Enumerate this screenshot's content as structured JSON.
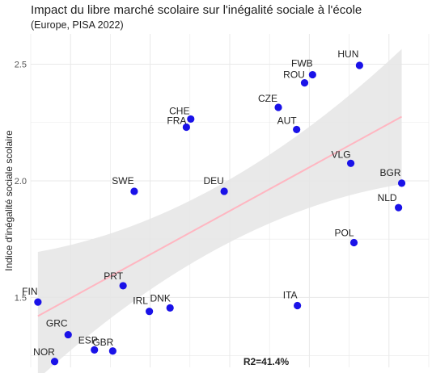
{
  "chart_data": {
    "type": "scatter",
    "title": "Impact du libre marché scolaire sur l'inégalité sociale à l'école",
    "subtitle": "(Europe, PISA 2022)",
    "xlabel": "",
    "ylabel": "Indice d'inégalité sociale scolaire",
    "ylim": [
      1.2,
      2.63
    ],
    "xlim": [
      0,
      1
    ],
    "yticks": [
      1.5,
      2.0,
      2.5
    ],
    "ytick_labels": [
      "1.5",
      "2.0",
      "2.5"
    ],
    "grid": true,
    "points": [
      {
        "label": "HUN",
        "x": 0.826,
        "y": 2.495
      },
      {
        "label": "FWB",
        "x": 0.708,
        "y": 2.455
      },
      {
        "label": "ROU",
        "x": 0.688,
        "y": 2.42
      },
      {
        "label": "CZE",
        "x": 0.622,
        "y": 2.315
      },
      {
        "label": "AUT",
        "x": 0.668,
        "y": 2.22
      },
      {
        "label": "CHE",
        "x": 0.402,
        "y": 2.265
      },
      {
        "label": "FRA",
        "x": 0.391,
        "y": 2.23
      },
      {
        "label": "VLG",
        "x": 0.804,
        "y": 2.075
      },
      {
        "label": "BGR",
        "x": 0.932,
        "y": 1.99
      },
      {
        "label": "NLD",
        "x": 0.924,
        "y": 1.885
      },
      {
        "label": "SWE",
        "x": 0.26,
        "y": 1.955
      },
      {
        "label": "DEU",
        "x": 0.486,
        "y": 1.955
      },
      {
        "label": "POL",
        "x": 0.812,
        "y": 1.735
      },
      {
        "label": "PRT",
        "x": 0.232,
        "y": 1.55
      },
      {
        "label": "FIN",
        "x": 0.018,
        "y": 1.48
      },
      {
        "label": "DNK",
        "x": 0.35,
        "y": 1.455
      },
      {
        "label": "IRL",
        "x": 0.298,
        "y": 1.44
      },
      {
        "label": "ITA",
        "x": 0.67,
        "y": 1.465
      },
      {
        "label": "GRC",
        "x": 0.094,
        "y": 1.34
      },
      {
        "label": "ESP",
        "x": 0.16,
        "y": 1.275
      },
      {
        "label": "GBR",
        "x": 0.206,
        "y": 1.27
      },
      {
        "label": "NOR",
        "x": 0.06,
        "y": 1.225
      }
    ],
    "trend": {
      "x": [
        0.018,
        0.932
      ],
      "y": [
        1.42,
        2.275
      ],
      "band_upper": [
        1.695,
        2.565
      ],
      "band_lower": [
        1.15,
        1.985
      ]
    },
    "annotation": "R2=41.4%",
    "colors": {
      "points": "#1a12e8",
      "trend": "#ffb6c1",
      "band": "#e5e5e5",
      "grid": "#e8e8e8",
      "text": "#222222"
    }
  }
}
